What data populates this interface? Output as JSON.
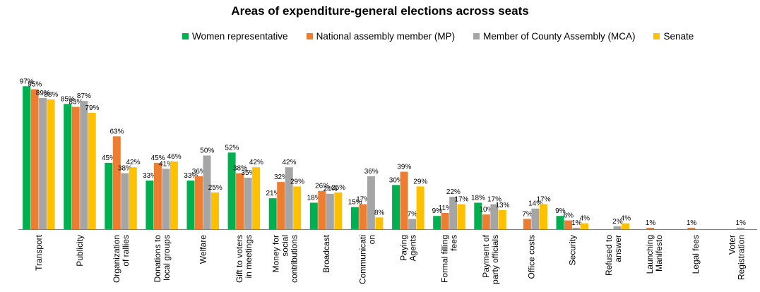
{
  "chart_data": {
    "type": "bar",
    "title": "Areas of expenditure-general elections across seats",
    "categories": [
      [
        "Transport"
      ],
      [
        "Publicity"
      ],
      [
        "Organization",
        "of rallies"
      ],
      [
        "Donations to",
        "local groups"
      ],
      [
        "Welfare"
      ],
      [
        "Gift to voters",
        "in meetings"
      ],
      [
        "Money for",
        "social",
        "contributions"
      ],
      [
        "Broadcast"
      ],
      [
        "Communicati",
        "on"
      ],
      [
        "Paying",
        "Agents"
      ],
      [
        "Formal filling",
        "fees"
      ],
      [
        "Payment of",
        "party officials"
      ],
      [
        "Office costs"
      ],
      [
        "Security"
      ],
      [
        "Refused to",
        "answer"
      ],
      [
        "Launching",
        "Manifesto"
      ],
      [
        "Legal fees"
      ],
      [
        "Voter",
        "Registration"
      ]
    ],
    "series": [
      {
        "name": "Women representative",
        "color": "#00B050",
        "values": [
          97,
          85,
          45,
          33,
          33,
          52,
          21,
          18,
          15,
          30,
          9,
          18,
          null,
          9,
          null,
          null,
          null,
          null
        ]
      },
      {
        "name": "National assembly member (MP)",
        "color": "#ED7D31",
        "values": [
          95,
          83,
          63,
          45,
          36,
          38,
          32,
          26,
          17,
          39,
          11,
          10,
          7,
          6,
          null,
          1,
          1,
          null
        ]
      },
      {
        "name": "Member of County Assembly (MCA)",
        "color": "#A5A5A5",
        "values": [
          89,
          87,
          38,
          41,
          50,
          35,
          42,
          24,
          36,
          7,
          22,
          17,
          14,
          1,
          2,
          null,
          null,
          1
        ]
      },
      {
        "name": "Senate",
        "color": "#FFC000",
        "values": [
          88,
          79,
          42,
          46,
          25,
          42,
          29,
          25,
          8,
          29,
          17,
          13,
          17,
          4,
          4,
          null,
          null,
          null
        ]
      }
    ],
    "value_suffix": "%",
    "ylim": [
      0,
      100
    ],
    "legend": "top",
    "grid": false
  }
}
